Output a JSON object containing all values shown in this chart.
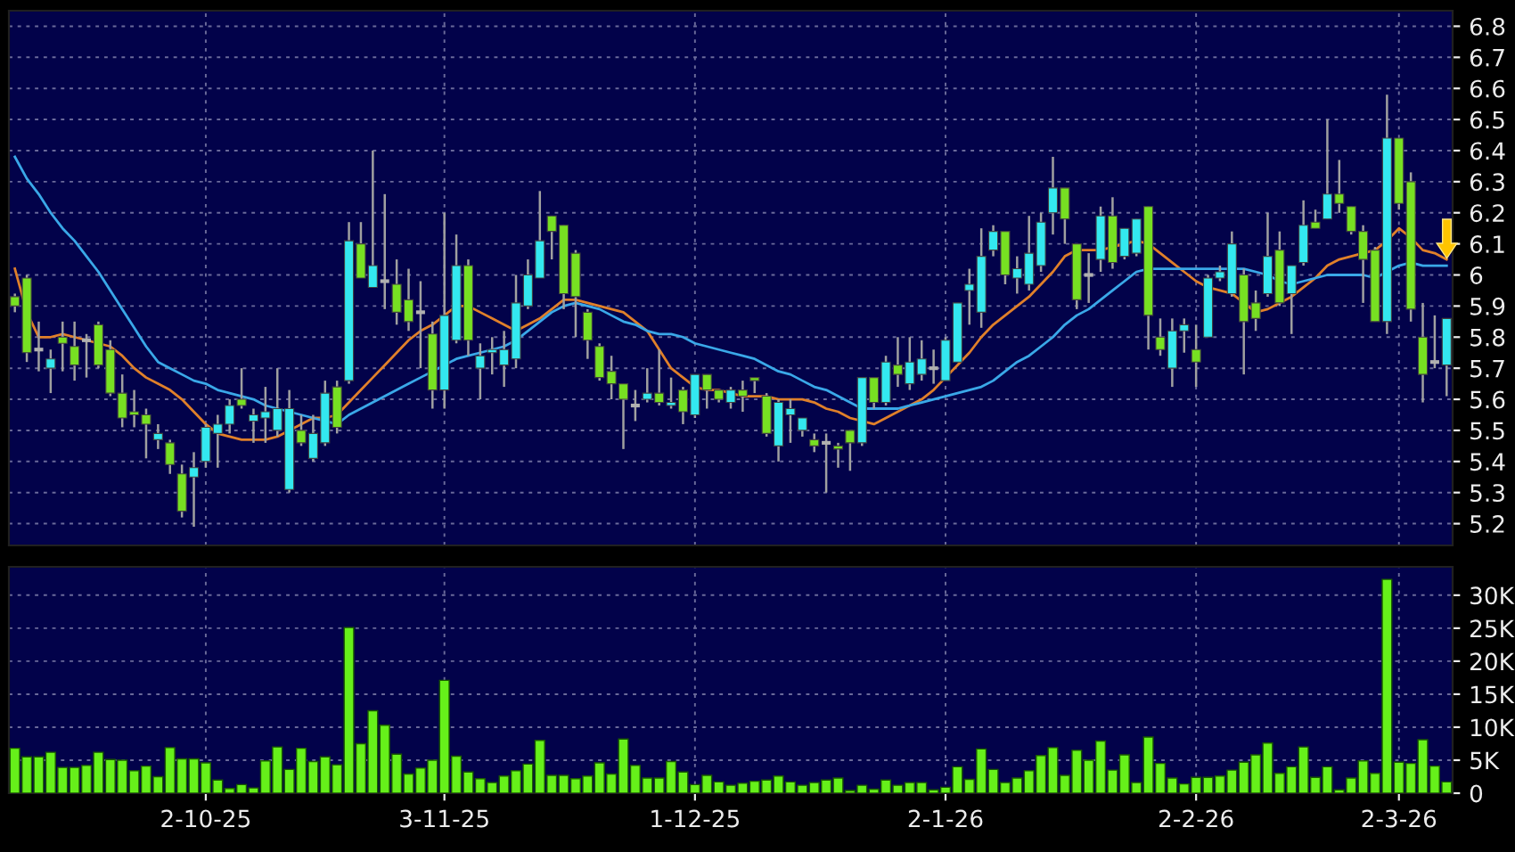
{
  "chart_data": [
    {
      "type": "candlestick",
      "categories": [
        null,
        null,
        null,
        null,
        null,
        null,
        null,
        null,
        null,
        null,
        null,
        null,
        null,
        null,
        null,
        null,
        null,
        null,
        null,
        null,
        null,
        null,
        null,
        null,
        null,
        null,
        null,
        null,
        null,
        null,
        null,
        null,
        null,
        null,
        null,
        null,
        null,
        null,
        null,
        null,
        null,
        null,
        null,
        null,
        null,
        null,
        null,
        null,
        null,
        null,
        null,
        null,
        null,
        null,
        null,
        null,
        null,
        null,
        null,
        null,
        null,
        null,
        null,
        null,
        null,
        null,
        null,
        null,
        null,
        null,
        null,
        null,
        null,
        null,
        null,
        null,
        null,
        null,
        null,
        null,
        null,
        null,
        null,
        null,
        null,
        null,
        null,
        null,
        null,
        null,
        null,
        null,
        null,
        null,
        null,
        null,
        null,
        null,
        null,
        null,
        null,
        null,
        null,
        null,
        null,
        null,
        null,
        null,
        null,
        null,
        null,
        null,
        null,
        null,
        null,
        null,
        null,
        null,
        null,
        null,
        null
      ],
      "ohlc": [
        [
          5.93,
          5.94,
          5.88,
          5.9
        ],
        [
          5.99,
          6.0,
          5.72,
          5.75
        ],
        [
          5.76,
          5.85,
          5.69,
          5.76
        ],
        [
          5.7,
          5.76,
          5.62,
          5.73
        ],
        [
          5.8,
          5.85,
          5.69,
          5.78
        ],
        [
          5.77,
          5.85,
          5.66,
          5.71
        ],
        [
          5.79,
          5.81,
          5.67,
          5.79
        ],
        [
          5.84,
          5.85,
          5.7,
          5.71
        ],
        [
          5.76,
          5.79,
          5.61,
          5.62
        ],
        [
          5.62,
          5.68,
          5.51,
          5.54
        ],
        [
          5.56,
          5.63,
          5.51,
          5.55
        ],
        [
          5.55,
          5.57,
          5.41,
          5.52
        ],
        [
          5.47,
          5.52,
          5.44,
          5.49
        ],
        [
          5.46,
          5.47,
          5.36,
          5.39
        ],
        [
          5.36,
          5.39,
          5.22,
          5.24
        ],
        [
          5.35,
          5.43,
          5.19,
          5.38
        ],
        [
          5.4,
          5.52,
          5.38,
          5.51
        ],
        [
          5.49,
          5.55,
          5.38,
          5.52
        ],
        [
          5.52,
          5.6,
          5.49,
          5.58
        ],
        [
          5.6,
          5.7,
          5.57,
          5.58
        ],
        [
          5.53,
          5.57,
          5.46,
          5.55
        ],
        [
          5.54,
          5.64,
          5.46,
          5.56
        ],
        [
          5.5,
          5.7,
          5.48,
          5.57
        ],
        [
          5.31,
          5.63,
          5.3,
          5.57
        ],
        [
          5.5,
          5.55,
          5.45,
          5.46
        ],
        [
          5.41,
          5.55,
          5.4,
          5.49
        ],
        [
          5.46,
          5.66,
          5.45,
          5.62
        ],
        [
          5.64,
          5.66,
          5.49,
          5.51
        ],
        [
          5.66,
          6.17,
          5.65,
          6.11
        ],
        [
          6.1,
          6.17,
          5.99,
          5.99
        ],
        [
          5.96,
          6.4,
          5.96,
          6.03
        ],
        [
          5.98,
          6.26,
          5.89,
          5.98
        ],
        [
          5.97,
          6.05,
          5.84,
          5.88
        ],
        [
          5.92,
          6.02,
          5.82,
          5.85
        ],
        [
          5.88,
          5.98,
          5.7,
          5.88
        ],
        [
          5.81,
          5.85,
          5.57,
          5.63
        ],
        [
          5.63,
          6.2,
          5.57,
          5.87
        ],
        [
          5.79,
          6.13,
          5.78,
          6.03
        ],
        [
          6.03,
          6.05,
          5.74,
          5.79
        ],
        [
          5.7,
          5.78,
          5.6,
          5.74
        ],
        [
          5.75,
          5.8,
          5.68,
          5.76
        ],
        [
          5.71,
          5.82,
          5.64,
          5.76
        ],
        [
          5.73,
          6.0,
          5.7,
          5.91
        ],
        [
          5.9,
          6.05,
          5.89,
          6.0
        ],
        [
          5.99,
          6.27,
          5.99,
          6.11
        ],
        [
          6.19,
          6.19,
          6.05,
          6.14
        ],
        [
          6.16,
          6.16,
          5.89,
          5.94
        ],
        [
          6.07,
          6.08,
          5.8,
          5.93
        ],
        [
          5.88,
          5.89,
          5.73,
          5.79
        ],
        [
          5.77,
          5.78,
          5.66,
          5.67
        ],
        [
          5.69,
          5.74,
          5.6,
          5.65
        ],
        [
          5.65,
          5.65,
          5.44,
          5.6
        ],
        [
          5.58,
          5.63,
          5.53,
          5.58
        ],
        [
          5.6,
          5.7,
          5.59,
          5.62
        ],
        [
          5.62,
          5.76,
          5.58,
          5.59
        ],
        [
          5.58,
          5.67,
          5.57,
          5.59
        ],
        [
          5.63,
          5.64,
          5.52,
          5.56
        ],
        [
          5.55,
          5.68,
          5.54,
          5.68
        ],
        [
          5.68,
          5.68,
          5.57,
          5.63
        ],
        [
          5.63,
          5.63,
          5.59,
          5.6
        ],
        [
          5.59,
          5.64,
          5.57,
          5.63
        ],
        [
          5.63,
          5.66,
          5.56,
          5.61
        ],
        [
          5.67,
          5.67,
          5.62,
          5.66
        ],
        [
          5.61,
          5.62,
          5.48,
          5.49
        ],
        [
          5.45,
          5.6,
          5.4,
          5.59
        ],
        [
          5.55,
          5.6,
          5.46,
          5.57
        ],
        [
          5.5,
          5.54,
          5.48,
          5.54
        ],
        [
          5.47,
          5.49,
          5.43,
          5.45
        ],
        [
          5.46,
          5.49,
          5.3,
          5.46
        ],
        [
          5.45,
          5.46,
          5.38,
          5.44
        ],
        [
          5.5,
          5.5,
          5.37,
          5.46
        ],
        [
          5.46,
          5.67,
          5.45,
          5.67
        ],
        [
          5.67,
          5.67,
          5.57,
          5.59
        ],
        [
          5.59,
          5.74,
          5.58,
          5.72
        ],
        [
          5.71,
          5.8,
          5.64,
          5.68
        ],
        [
          5.65,
          5.8,
          5.63,
          5.72
        ],
        [
          5.68,
          5.79,
          5.66,
          5.73
        ],
        [
          5.7,
          5.76,
          5.65,
          5.7
        ],
        [
          5.66,
          5.8,
          5.66,
          5.79
        ],
        [
          5.72,
          5.91,
          5.72,
          5.91
        ],
        [
          5.95,
          6.02,
          5.84,
          5.97
        ],
        [
          5.88,
          6.15,
          5.83,
          6.06
        ],
        [
          6.08,
          6.16,
          6.06,
          6.14
        ],
        [
          6.14,
          6.14,
          5.97,
          6.0
        ],
        [
          5.99,
          6.06,
          5.94,
          6.02
        ],
        [
          5.97,
          6.19,
          5.95,
          6.07
        ],
        [
          6.03,
          6.2,
          6.01,
          6.17
        ],
        [
          6.2,
          6.38,
          6.13,
          6.28
        ],
        [
          6.28,
          6.28,
          6.1,
          6.18
        ],
        [
          6.1,
          6.1,
          5.89,
          5.92
        ],
        [
          6.0,
          6.07,
          5.91,
          6.0
        ],
        [
          6.05,
          6.22,
          6.01,
          6.19
        ],
        [
          6.19,
          6.25,
          6.02,
          6.04
        ],
        [
          6.06,
          6.15,
          6.05,
          6.15
        ],
        [
          6.07,
          6.18,
          6.06,
          6.18
        ],
        [
          6.22,
          6.22,
          5.76,
          5.87
        ],
        [
          5.8,
          5.86,
          5.74,
          5.76
        ],
        [
          5.7,
          5.86,
          5.64,
          5.82
        ],
        [
          5.82,
          5.86,
          5.75,
          5.84
        ],
        [
          5.76,
          5.84,
          5.64,
          5.72
        ],
        [
          5.8,
          6.0,
          5.8,
          5.99
        ],
        [
          5.99,
          6.03,
          5.98,
          6.01
        ],
        [
          5.94,
          6.14,
          5.93,
          6.1
        ],
        [
          6.0,
          6.02,
          5.68,
          5.85
        ],
        [
          5.91,
          5.95,
          5.82,
          5.86
        ],
        [
          5.94,
          6.2,
          5.93,
          6.06
        ],
        [
          6.08,
          6.14,
          5.9,
          5.91
        ],
        [
          5.94,
          6.03,
          5.81,
          6.03
        ],
        [
          6.04,
          6.24,
          6.03,
          6.16
        ],
        [
          6.17,
          6.21,
          6.15,
          6.15
        ],
        [
          6.18,
          6.5,
          6.18,
          6.26
        ],
        [
          6.26,
          6.37,
          6.2,
          6.23
        ],
        [
          6.22,
          6.22,
          6.13,
          6.14
        ],
        [
          6.14,
          6.16,
          5.91,
          6.05
        ],
        [
          6.08,
          6.09,
          5.85,
          5.85
        ],
        [
          5.85,
          6.58,
          5.81,
          6.44
        ],
        [
          6.44,
          6.44,
          6.21,
          6.23
        ],
        [
          6.3,
          6.33,
          5.85,
          5.89
        ],
        [
          5.8,
          5.91,
          5.59,
          5.68
        ],
        [
          5.72,
          5.87,
          5.7,
          5.72
        ],
        [
          5.71,
          5.86,
          5.61,
          5.86
        ]
      ],
      "colors": [
        "#77e022",
        "#77e022",
        "#b0b0b0",
        "#33e8f0",
        "#77e022",
        "#77e022",
        "#b0b0b0",
        "#77e022",
        "#77e022",
        "#77e022",
        "#77e022",
        "#77e022",
        "#33e8f0",
        "#77e022",
        "#77e022",
        "#33e8f0",
        "#33e8f0",
        "#33e8f0",
        "#33e8f0",
        "#77e022",
        "#33e8f0",
        "#33e8f0",
        "#33e8f0",
        "#33e8f0",
        "#77e022",
        "#33e8f0",
        "#33e8f0",
        "#77e022",
        "#33e8f0",
        "#77e022",
        "#33e8f0",
        "#b0b0b0",
        "#77e022",
        "#77e022",
        "#b0b0b0",
        "#77e022",
        "#33e8f0",
        "#33e8f0",
        "#77e022",
        "#33e8f0",
        "#33e8f0",
        "#33e8f0",
        "#33e8f0",
        "#33e8f0",
        "#33e8f0",
        "#77e022",
        "#77e022",
        "#77e022",
        "#77e022",
        "#77e022",
        "#77e022",
        "#77e022",
        "#b0b0b0",
        "#33e8f0",
        "#77e022",
        "#33e8f0",
        "#77e022",
        "#33e8f0",
        "#77e022",
        "#77e022",
        "#33e8f0",
        "#77e022",
        "#77e022",
        "#77e022",
        "#33e8f0",
        "#33e8f0",
        "#33e8f0",
        "#77e022",
        "#b0b0b0",
        "#77e022",
        "#77e022",
        "#33e8f0",
        "#77e022",
        "#33e8f0",
        "#77e022",
        "#33e8f0",
        "#33e8f0",
        "#b0b0b0",
        "#33e8f0",
        "#33e8f0",
        "#33e8f0",
        "#33e8f0",
        "#33e8f0",
        "#77e022",
        "#33e8f0",
        "#33e8f0",
        "#33e8f0",
        "#33e8f0",
        "#77e022",
        "#77e022",
        "#b0b0b0",
        "#33e8f0",
        "#77e022",
        "#33e8f0",
        "#33e8f0",
        "#77e022",
        "#77e022",
        "#33e8f0",
        "#33e8f0",
        "#77e022",
        "#33e8f0",
        "#33e8f0",
        "#33e8f0",
        "#77e022",
        "#77e022",
        "#33e8f0",
        "#77e022",
        "#33e8f0",
        "#33e8f0",
        "#77e022",
        "#33e8f0",
        "#77e022",
        "#77e022",
        "#77e022",
        "#77e022",
        "#33e8f0",
        "#77e022",
        "#77e022",
        "#77e022",
        "#b0b0b0",
        "#33e8f0"
      ],
      "series": [
        {
          "type": "line",
          "color": "#e0802a",
          "values": [
            6.02,
            5.88,
            5.8,
            5.8,
            5.81,
            5.8,
            5.79,
            5.78,
            5.77,
            5.74,
            5.7,
            5.67,
            5.65,
            5.63,
            5.6,
            5.56,
            5.52,
            5.49,
            5.48,
            5.47,
            5.47,
            5.47,
            5.48,
            5.5,
            5.52,
            5.54,
            5.54,
            5.55,
            5.59,
            5.63,
            5.67,
            5.71,
            5.75,
            5.79,
            5.82,
            5.84,
            5.87,
            5.9,
            5.9,
            5.88,
            5.86,
            5.84,
            5.82,
            5.84,
            5.86,
            5.89,
            5.92,
            5.92,
            5.91,
            5.9,
            5.89,
            5.88,
            5.85,
            5.82,
            5.76,
            5.7,
            5.67,
            5.64,
            5.63,
            5.63,
            5.62,
            5.61,
            5.61,
            5.61,
            5.6,
            5.6,
            5.6,
            5.59,
            5.57,
            5.56,
            5.54,
            5.53,
            5.52,
            5.54,
            5.56,
            5.58,
            5.6,
            5.63,
            5.67,
            5.71,
            5.75,
            5.8,
            5.84,
            5.87,
            5.9,
            5.93,
            5.97,
            6.01,
            6.06,
            6.08,
            6.08,
            6.08,
            6.09,
            6.1,
            6.11,
            6.1,
            6.07,
            6.04,
            6.01,
            5.98,
            5.96,
            5.95,
            5.94,
            5.91,
            5.88,
            5.89,
            5.91,
            5.93,
            5.96,
            5.99,
            6.03,
            6.05,
            6.06,
            6.07,
            6.08,
            6.11,
            6.15,
            6.12,
            6.08,
            6.07,
            6.05
          ]
        },
        {
          "type": "line",
          "color": "#3aa8e8",
          "values": [
            6.38,
            6.31,
            6.26,
            6.2,
            6.15,
            6.11,
            6.06,
            6.01,
            5.95,
            5.89,
            5.83,
            5.77,
            5.72,
            5.7,
            5.68,
            5.66,
            5.65,
            5.63,
            5.62,
            5.61,
            5.6,
            5.58,
            5.57,
            5.56,
            5.55,
            5.54,
            5.53,
            5.52,
            5.55,
            5.57,
            5.59,
            5.61,
            5.63,
            5.65,
            5.67,
            5.69,
            5.71,
            5.73,
            5.74,
            5.75,
            5.76,
            5.77,
            5.79,
            5.82,
            5.85,
            5.88,
            5.9,
            5.91,
            5.9,
            5.89,
            5.87,
            5.85,
            5.84,
            5.82,
            5.81,
            5.81,
            5.8,
            5.78,
            5.77,
            5.76,
            5.75,
            5.74,
            5.73,
            5.71,
            5.69,
            5.68,
            5.66,
            5.64,
            5.63,
            5.61,
            5.59,
            5.57,
            5.57,
            5.57,
            5.57,
            5.58,
            5.59,
            5.6,
            5.61,
            5.62,
            5.63,
            5.64,
            5.66,
            5.69,
            5.72,
            5.74,
            5.77,
            5.8,
            5.84,
            5.87,
            5.89,
            5.92,
            5.95,
            5.98,
            6.01,
            6.02,
            6.02,
            6.02,
            6.02,
            6.02,
            6.02,
            6.02,
            6.02,
            6.02,
            6.01,
            6.0,
            5.98,
            5.97,
            5.98,
            5.99,
            6.0,
            6.0,
            6.0,
            6.0,
            5.99,
            6.01,
            6.03,
            6.04,
            6.03,
            6.03,
            6.03
          ]
        }
      ],
      "ylim": [
        5.13,
        6.85
      ],
      "yticks": [
        5.2,
        5.3,
        5.4,
        5.5,
        5.6,
        5.7,
        5.8,
        5.9,
        6,
        6.1,
        6.2,
        6.3,
        6.4,
        6.5,
        6.6,
        6.7,
        6.8
      ],
      "grid": true
    },
    {
      "type": "bar",
      "categories": [
        null,
        null,
        null,
        null,
        null,
        null,
        null,
        null,
        null,
        null,
        null,
        null,
        null,
        null,
        null,
        null,
        "2-10-25",
        null,
        null,
        null,
        null,
        null,
        null,
        null,
        null,
        null,
        null,
        null,
        null,
        null,
        null,
        null,
        null,
        null,
        null,
        null,
        "3-11-25",
        null,
        null,
        null,
        null,
        null,
        null,
        null,
        null,
        null,
        null,
        null,
        null,
        null,
        null,
        null,
        null,
        null,
        null,
        null,
        null,
        "1-12-25",
        null,
        null,
        null,
        null,
        null,
        null,
        null,
        null,
        null,
        null,
        null,
        null,
        null,
        null,
        null,
        null,
        null,
        null,
        null,
        null,
        "2-1-26",
        null,
        null,
        null,
        null,
        null,
        null,
        null,
        null,
        null,
        null,
        null,
        null,
        null,
        null,
        null,
        null,
        null,
        null,
        null,
        null,
        "2-2-26",
        null,
        null,
        null,
        null,
        null,
        null,
        null,
        null,
        null,
        null,
        null,
        null,
        null,
        null,
        null,
        null,
        "2-3-26",
        null,
        null,
        null,
        null
      ],
      "values": [
        6800,
        5500,
        5500,
        6200,
        3900,
        3900,
        4200,
        6200,
        5100,
        5000,
        3400,
        4100,
        2500,
        6900,
        5200,
        5200,
        4600,
        2000,
        700,
        1300,
        800,
        4900,
        7000,
        3600,
        6800,
        4800,
        5500,
        4300,
        25100,
        7500,
        12500,
        10300,
        5900,
        2900,
        3800,
        5000,
        17100,
        5600,
        3200,
        2200,
        1600,
        2600,
        3400,
        4400,
        8000,
        2700,
        2700,
        2200,
        2600,
        4600,
        2900,
        8200,
        4200,
        2300,
        2300,
        4800,
        3200,
        1300,
        2700,
        1700,
        1200,
        1500,
        1800,
        2000,
        2600,
        1700,
        1200,
        1600,
        2000,
        2300,
        400,
        1200,
        600,
        2000,
        1200,
        1600,
        1600,
        500,
        900,
        4000,
        2100,
        6700,
        3600,
        1600,
        2300,
        3400,
        5700,
        6900,
        2700,
        6500,
        5000,
        7900,
        3500,
        5800,
        1600,
        8500,
        4500,
        2300,
        1400,
        2400,
        2400,
        2600,
        3500,
        4700,
        5800,
        7600,
        3000,
        4000,
        7000,
        2400,
        4000,
        500,
        2300,
        4900,
        3000,
        32400,
        4700,
        4500,
        8100,
        4100,
        1700
      ],
      "color": "#66f01a",
      "ylim": [
        0,
        34300
      ],
      "yticks": [
        {
          "value": 0,
          "label": "0"
        },
        {
          "value": 5000,
          "label": "5K"
        },
        {
          "value": 10000,
          "label": "10K"
        },
        {
          "value": 15000,
          "label": "15K"
        },
        {
          "value": 20000,
          "label": "20K"
        },
        {
          "value": 25000,
          "label": "25K"
        },
        {
          "value": 30000,
          "label": "30K"
        }
      ],
      "grid": true
    }
  ]
}
